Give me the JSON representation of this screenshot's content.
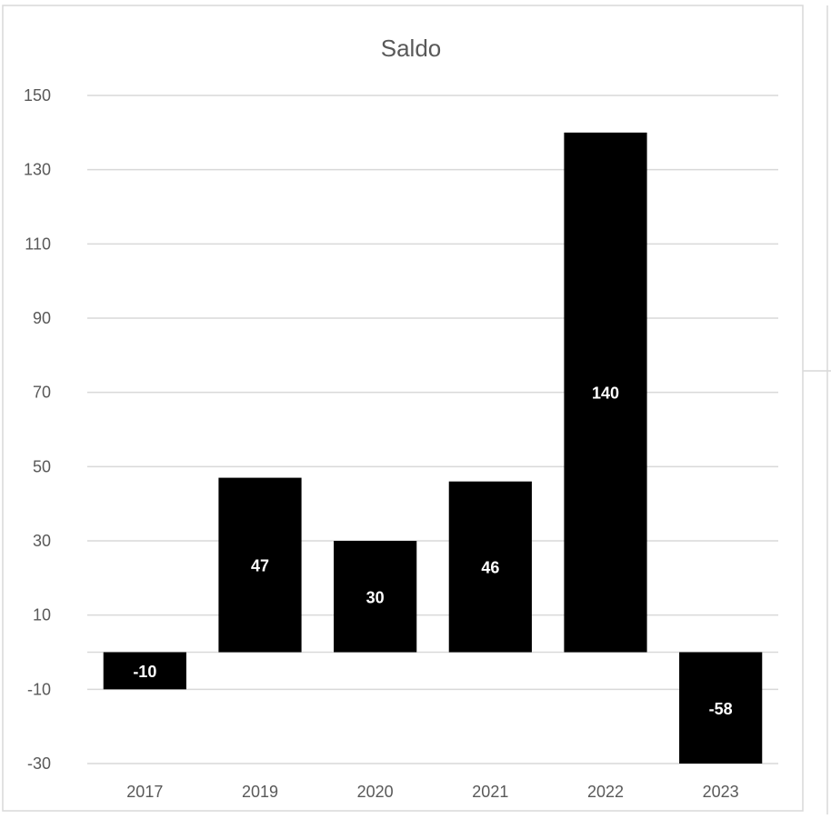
{
  "chart_data": {
    "type": "bar",
    "title": "Saldo",
    "xlabel": "",
    "ylabel": "",
    "categories": [
      "2017",
      "2019",
      "2020",
      "2021",
      "2022",
      "2023"
    ],
    "values": [
      -10,
      47,
      30,
      46,
      140,
      -58
    ],
    "data_labels": [
      "-10",
      "47",
      "30",
      "46",
      "140",
      "-58"
    ],
    "ylim": [
      -30,
      150
    ],
    "yticks": [
      150,
      130,
      110,
      90,
      70,
      50,
      30,
      10,
      -10,
      -30
    ],
    "grid": true,
    "legend": "none",
    "colors": {
      "bar": "#000000",
      "grid": "#d9d9d9",
      "axis_text": "#595959",
      "data_label": "#ffffff",
      "border": "#d9d9d9"
    }
  }
}
